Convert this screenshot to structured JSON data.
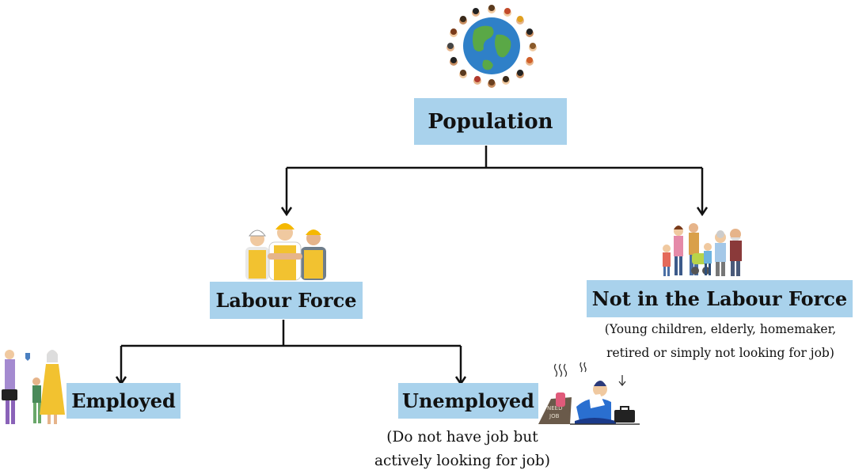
{
  "diagram": {
    "root": {
      "label": "Population",
      "icon": "globe-with-people-icon"
    },
    "labour_force": {
      "label": "Labour Force",
      "icon": "construction-workers-icon"
    },
    "not_labour_force": {
      "label": "Not in the Labour Force",
      "icon": "family-generations-icon",
      "note_line1": "(Young children, elderly, homemaker,",
      "note_line2": "retired or simply not looking for job)"
    },
    "employed": {
      "label": "Employed",
      "icon": "working-people-icon"
    },
    "unemployed": {
      "label": "Unemployed",
      "icon": "jobless-person-icon",
      "note_line1": "(Do not have job but",
      "note_line2": "actively looking for job)",
      "sign_text_1": "NEED",
      "sign_text_2": "JOB"
    }
  },
  "colors": {
    "box_fill": "#a9d2ec",
    "connector": "#111111",
    "globe_ocean": "#2f80c8",
    "globe_land": "#5aa846",
    "hard_hat": "#f5b800",
    "vest": "#f2c230"
  }
}
